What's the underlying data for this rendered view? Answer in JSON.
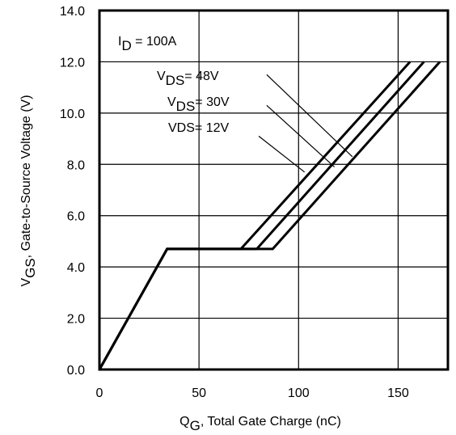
{
  "chart_data": {
    "type": "line",
    "xlabel_main": "Q",
    "xlabel_sub": "G",
    "xlabel_rest": ",  Total Gate Charge (nC)",
    "ylabel_main": "V",
    "ylabel_sub": "GS",
    "ylabel_rest": ", Gate-to-Source Voltage (V)",
    "xlim": [
      0,
      175
    ],
    "ylim": [
      0,
      14
    ],
    "grid": true,
    "x_ticks": [
      0,
      50,
      100,
      150
    ],
    "x_tick_labels": [
      "0",
      "50",
      "100",
      "150"
    ],
    "y_ticks": [
      0,
      2,
      4,
      6,
      8,
      10,
      12,
      14
    ],
    "y_tick_labels": [
      "0.0",
      "2.0",
      "4.0",
      "6.0",
      "8.0",
      "10.0",
      "12.0",
      "14.0"
    ],
    "condition": {
      "main": "I",
      "sub": "D",
      "rest": " = 100A"
    },
    "series": [
      {
        "name_main": "V",
        "name_sub": "DS",
        "name_rest": "= 48V",
        "points": [
          [
            0,
            0
          ],
          [
            34,
            4.7
          ],
          [
            87,
            4.7
          ],
          [
            171,
            12
          ]
        ]
      },
      {
        "name_main": "V",
        "name_sub": "DS",
        "name_rest": "= 30V",
        "points": [
          [
            0,
            0
          ],
          [
            34,
            4.7
          ],
          [
            79,
            4.7
          ],
          [
            163,
            12
          ]
        ]
      },
      {
        "name_main": "VDS",
        "name_sub": "",
        "name_rest": "= 12V",
        "points": [
          [
            0,
            0
          ],
          [
            34,
            4.7
          ],
          [
            71,
            4.7
          ],
          [
            156,
            12
          ]
        ]
      }
    ],
    "label_leaders": [
      {
        "from": [
          84,
          11.5
        ],
        "to": [
          127,
          8.3
        ]
      },
      {
        "from": [
          84,
          10.3
        ],
        "to": [
          118,
          7.9
        ]
      },
      {
        "from": [
          80,
          9.1
        ],
        "to": [
          103,
          7.7
        ]
      }
    ],
    "colors": {
      "line": "#000000",
      "grid": "#000000",
      "background": "#ffffff"
    }
  }
}
